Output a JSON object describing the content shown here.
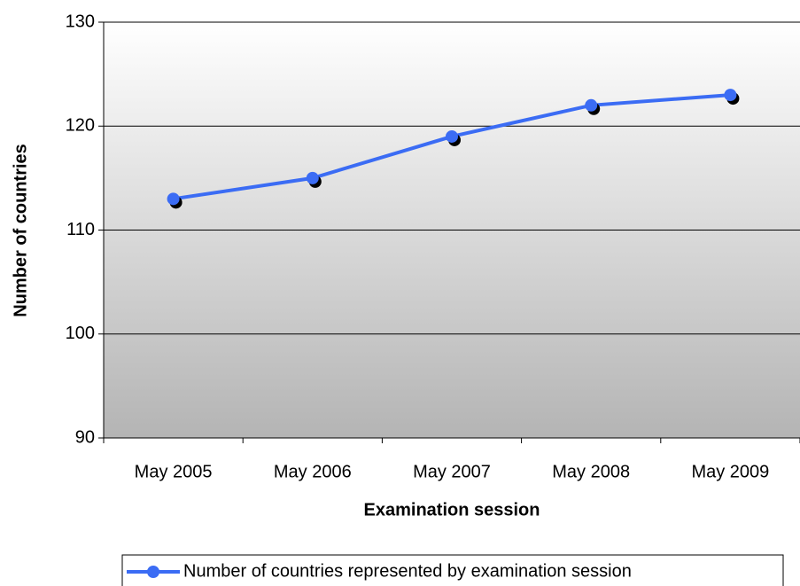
{
  "chart_data": {
    "type": "line",
    "x_label": "Examination session",
    "y_label": "Number of countries",
    "categories": [
      "May 2005",
      "May 2006",
      "May 2007",
      "May 2008",
      "May 2009"
    ],
    "series": [
      {
        "name": "Number of countries represented by examination session",
        "color": "#3b6cf4",
        "values": [
          113,
          115,
          119,
          122,
          123
        ]
      }
    ],
    "ylim": [
      90,
      130
    ],
    "yticks": [
      90,
      100,
      110,
      120,
      130
    ],
    "grid": true,
    "legend": "bottom"
  }
}
